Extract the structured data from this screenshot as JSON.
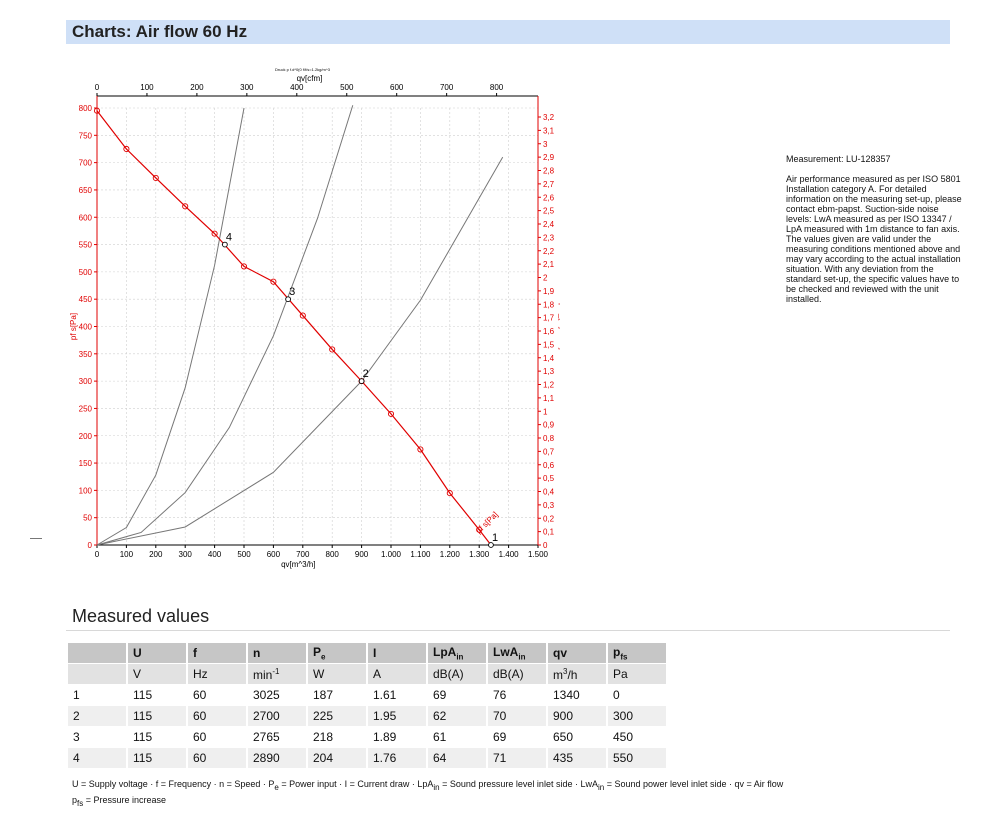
{
  "header": {
    "title": "Charts: Air flow 60 Hz"
  },
  "info": {
    "measurement": "Measurement: LU-128357",
    "description": "Air performance measured as per ISO 5801 Installation category A. For detailed information on the measuring set-up, please contact ebm-papst. Suction-side noise levels: LwA measured as per ISO 13347 / LpA measured with 1m distance to fan axis. The values given are valid under the measuring conditions mentioned above and may vary according to the actual installation situation. With any deviation from the standard set-up, the specific values have to be checked and reviewed with the unit installed."
  },
  "chart_data": {
    "type": "line",
    "title": "Druck p f.d*0(0 f/f/s=1.2kg/m^3",
    "xlabel": "qv[m^3/h]",
    "x2label": "qv[cfm]",
    "ylabel": "pf s[Pa]",
    "y2label": "pfs_[in] H2O]",
    "xlim": [
      0,
      1500
    ],
    "ylim": [
      0,
      800
    ],
    "x_ticks": [
      "0",
      "100",
      "200",
      "300",
      "400",
      "500",
      "600",
      "700",
      "800",
      "900",
      "1.000",
      "1.100",
      "1.200",
      "1.300",
      "1.400",
      "1.500"
    ],
    "y_ticks": [
      "0",
      "50",
      "100",
      "150",
      "200",
      "250",
      "300",
      "350",
      "400",
      "450",
      "500",
      "550",
      "600",
      "650",
      "700",
      "750",
      "800"
    ],
    "x2_ticks": [
      "0",
      "100",
      "200",
      "300",
      "400",
      "500",
      "600",
      "700",
      "800"
    ],
    "y2_ticks": [
      "0",
      "0,1",
      "0,2",
      "0,3",
      "0,4",
      "0,5",
      "0,6",
      "0,7",
      "0,8",
      "0,9",
      "1",
      "1,1",
      "1,2",
      "1,3",
      "1,4",
      "1,5",
      "1,6",
      "1,7",
      "1,8",
      "1,9",
      "2",
      "2,1",
      "2,2",
      "2,3",
      "2,4",
      "2,5",
      "2,6",
      "2,7",
      "2,8",
      "2,9",
      "3",
      "3,1",
      "3,2"
    ],
    "curve_label": "pf s[Pa]",
    "series": [
      {
        "color": "#e00000",
        "x": [
          0,
          100,
          200,
          300,
          400,
          500,
          600,
          700,
          800,
          900,
          1000,
          1100,
          1200,
          1300,
          1340
        ],
        "y": [
          795,
          725,
          672,
          620,
          570,
          510,
          482,
          420,
          358,
          300,
          240,
          175,
          95,
          28,
          0
        ]
      }
    ],
    "system_curves": [
      {
        "color": "#777777",
        "x": [
          0,
          100,
          200,
          300,
          400,
          500
        ],
        "y": [
          0,
          32,
          128,
          288,
          512,
          800
        ]
      },
      {
        "color": "#777777",
        "x": [
          0,
          150,
          300,
          450,
          600,
          750,
          870
        ],
        "y": [
          0,
          23,
          96,
          215,
          383,
          598,
          805
        ]
      },
      {
        "color": "#777777",
        "x": [
          0,
          300,
          600,
          900,
          1100,
          1380
        ],
        "y": [
          0,
          33,
          133,
          300,
          448,
          710
        ]
      }
    ],
    "operating_points": [
      {
        "label": "1",
        "x": 1340,
        "y": 0
      },
      {
        "label": "2",
        "x": 900,
        "y": 300
      },
      {
        "label": "3",
        "x": 650,
        "y": 450
      },
      {
        "label": "4",
        "x": 435,
        "y": 550
      }
    ]
  },
  "measured": {
    "title": "Measured values",
    "headers": [
      "U",
      "f",
      "n",
      "P",
      "I",
      "LpA",
      "LwA",
      "qv",
      "p"
    ],
    "header_subs": [
      "",
      "",
      "",
      "e",
      "",
      "in",
      "in",
      "",
      "fs"
    ],
    "units": [
      "V",
      "Hz",
      "min",
      "W",
      "A",
      "dB(A)",
      "dB(A)",
      "m",
      "Pa"
    ],
    "unit_sups": [
      "",
      "",
      "-1",
      "",
      "",
      "",
      "",
      "3",
      ""
    ],
    "unit_suffix": [
      "",
      "",
      "",
      "",
      "",
      "",
      "",
      "/h",
      ""
    ],
    "rows": [
      [
        "1",
        "115",
        "60",
        "3025",
        "187",
        "1.61",
        "69",
        "76",
        "1340",
        "0"
      ],
      [
        "2",
        "115",
        "60",
        "2700",
        "225",
        "1.95",
        "62",
        "70",
        "900",
        "300"
      ],
      [
        "3",
        "115",
        "60",
        "2765",
        "218",
        "1.89",
        "61",
        "69",
        "650",
        "450"
      ],
      [
        "4",
        "115",
        "60",
        "2890",
        "204",
        "1.76",
        "64",
        "71",
        "435",
        "550"
      ]
    ]
  },
  "legend": {
    "line1a": "U = Supply voltage · f = Frequency · n = Speed · P",
    "line1b": " = Power input · I = Current draw · LpA",
    "line1c": " = Sound pressure level inlet side · LwA",
    "line1d": " = Sound power level inlet side · qv = Air flow",
    "sub_e": "e",
    "sub_in": "in",
    "line2_p": "p",
    "line2_sub": "fs",
    "line2_rest": " = Pressure increase"
  }
}
